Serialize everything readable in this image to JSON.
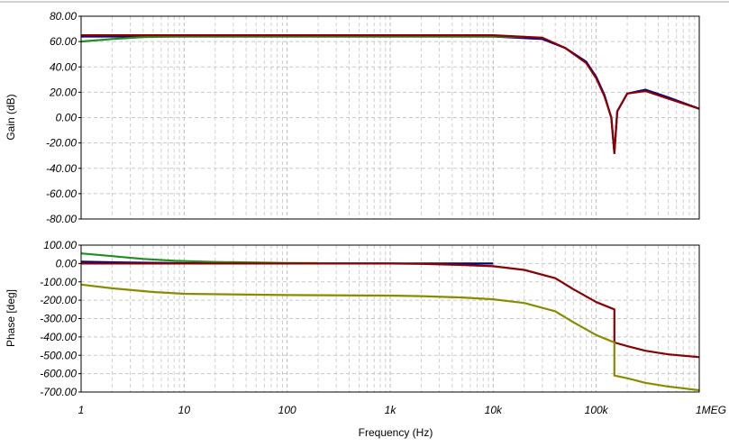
{
  "chart_data": [
    {
      "type": "line",
      "ylabel": "Gain (dB)",
      "xscale": "log",
      "xlim": [
        1,
        1000000
      ],
      "ylim": [
        -80,
        80
      ],
      "yticks": [
        "80.00",
        "60.00",
        "40.00",
        "20.00",
        "0.00",
        "-20.00",
        "-40.00",
        "-60.00",
        "-80.00"
      ],
      "grid": true,
      "colors": [
        "#00008b",
        "#1f8f1f",
        "#8b0000"
      ],
      "series": [
        {
          "color": "#00008b",
          "x": [
            1,
            10,
            100,
            1000,
            10000,
            30000,
            50000,
            80000,
            100000,
            120000,
            140000,
            150000,
            160000,
            200000,
            300000,
            500000,
            1000000
          ],
          "y": [
            64,
            64,
            64,
            64,
            64,
            62,
            55,
            44,
            32,
            18,
            0,
            -28,
            5,
            19,
            22,
            16,
            7
          ]
        },
        {
          "color": "#1f8f1f",
          "x": [
            1,
            2,
            4,
            8,
            10,
            100,
            1000,
            10000,
            20000
          ],
          "y": [
            60,
            62,
            63.5,
            64,
            64,
            64,
            64,
            64,
            63.5
          ]
        },
        {
          "color": "#8b0000",
          "x": [
            1,
            10,
            100,
            1000,
            10000,
            30000,
            50000,
            80000,
            100000,
            120000,
            140000,
            150000,
            160000,
            200000,
            300000,
            500000,
            1000000
          ],
          "y": [
            65,
            65,
            65,
            65,
            65,
            63,
            55,
            43,
            31,
            17,
            0,
            -28,
            5,
            19,
            21,
            15,
            7
          ]
        }
      ]
    },
    {
      "type": "line",
      "ylabel": "Phase [deg]",
      "xlabel": "Frequency (Hz)",
      "xscale": "log",
      "xlim": [
        1,
        1000000
      ],
      "ylim": [
        -700,
        100
      ],
      "xticks": [
        "1",
        "10",
        "100",
        "1k",
        "10k",
        "100k",
        "1MEG"
      ],
      "yticks": [
        "100.00",
        "0.00",
        "-100.00",
        "-200.00",
        "-300.00",
        "-400.00",
        "-500.00",
        "-600.00",
        "-700.00"
      ],
      "grid": true,
      "colors": [
        "#00008b",
        "#1f8f1f",
        "#8b0000",
        "#8b8b00"
      ],
      "series": [
        {
          "color": "#00008b",
          "x": [
            1,
            3,
            10,
            100,
            1000,
            10000
          ],
          "y": [
            10,
            5,
            2,
            0,
            0,
            0
          ]
        },
        {
          "color": "#1f8f1f",
          "x": [
            1,
            2,
            4,
            8,
            20,
            100,
            200
          ],
          "y": [
            55,
            40,
            25,
            15,
            8,
            3,
            2
          ]
        },
        {
          "color": "#8b0000",
          "x": [
            1,
            10,
            100,
            1000,
            2000,
            5000,
            10000,
            20000,
            40000,
            60000,
            100000,
            150000,
            150001,
            200000,
            300000,
            500000,
            1000000
          ],
          "y": [
            0,
            0,
            0,
            0,
            -2,
            -8,
            -15,
            -35,
            -80,
            -140,
            -210,
            -250,
            -430,
            -450,
            -475,
            -495,
            -510
          ]
        },
        {
          "color": "#8b8b00",
          "x": [
            1,
            2,
            5,
            10,
            100,
            1000,
            2000,
            5000,
            10000,
            20000,
            40000,
            60000,
            100000,
            150000,
            150001,
            200000,
            300000,
            500000,
            1000000
          ],
          "y": [
            -115,
            -135,
            -155,
            -165,
            -172,
            -175,
            -178,
            -185,
            -195,
            -215,
            -260,
            -320,
            -390,
            -430,
            -610,
            -625,
            -650,
            -670,
            -690
          ]
        }
      ]
    }
  ]
}
